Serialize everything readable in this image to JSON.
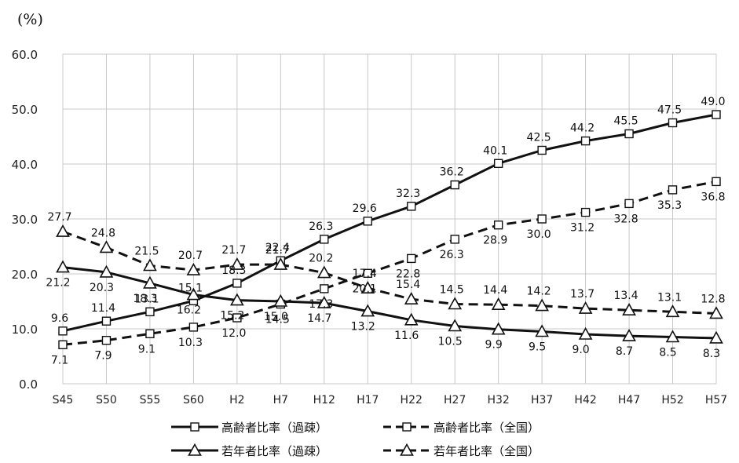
{
  "chart_data": {
    "type": "line",
    "unit_label": "(%)",
    "categories": [
      "S45",
      "S50",
      "S55",
      "S60",
      "H2",
      "H7",
      "H12",
      "H17",
      "H22",
      "H27",
      "H32",
      "H37",
      "H42",
      "H47",
      "H52",
      "H57"
    ],
    "ylim": [
      0,
      60
    ],
    "yticks": [
      "0.0",
      "10.0",
      "20.0",
      "30.0",
      "40.0",
      "50.0",
      "60.0"
    ],
    "grid": true,
    "legend_position": "bottom",
    "series": [
      {
        "name": "高齢者比率（過疎）",
        "values": [
          9.6,
          11.4,
          13.1,
          15.1,
          18.3,
          22.4,
          26.3,
          29.6,
          32.3,
          36.2,
          40.1,
          42.5,
          44.2,
          45.5,
          47.5,
          49.0
        ]
      },
      {
        "name": "高齢者比率（全国）",
        "values": [
          7.1,
          7.9,
          9.1,
          10.3,
          12.0,
          14.5,
          17.3,
          20.1,
          22.8,
          26.3,
          28.9,
          30.0,
          31.2,
          32.8,
          35.3,
          36.8
        ]
      },
      {
        "name": "若年者比率（過疎）",
        "values": [
          21.2,
          20.3,
          18.3,
          16.2,
          15.2,
          15.0,
          14.7,
          13.2,
          11.6,
          10.5,
          9.9,
          9.5,
          9.0,
          8.7,
          8.5,
          8.3
        ]
      },
      {
        "name": "若年者比率（全国）",
        "values": [
          27.7,
          24.8,
          21.5,
          20.7,
          21.7,
          21.7,
          20.2,
          17.4,
          15.4,
          14.5,
          14.4,
          14.2,
          13.7,
          13.4,
          13.1,
          12.8
        ]
      }
    ],
    "data_labels": [
      [
        "9.6",
        "11.4",
        "13.1",
        "15.1",
        "18.3",
        "22.4",
        "26.3",
        "29.6",
        "32.3",
        "36.2",
        "40.1",
        "42.5",
        "44.2",
        "45.5",
        "47.5",
        "49.0"
      ],
      [
        "7.1",
        "7.9",
        "9.1",
        "10.3",
        "12.0",
        "14.5",
        "17.3",
        "20.1",
        "22.8",
        "26.3",
        "28.9",
        "30.0",
        "31.2",
        "32.8",
        "35.3",
        "36.8"
      ],
      [
        "21.2",
        "20.3",
        "18.3",
        "16.2",
        "15.2",
        "15.0",
        "14.7",
        "13.2",
        "11.6",
        "10.5",
        "9.9",
        "9.5",
        "9.0",
        "8.7",
        "8.5",
        "8.3"
      ],
      [
        "27.7",
        "24.8",
        "21.5",
        "20.7",
        "21.7",
        "21.7",
        "20.2",
        "17.4",
        "15.4",
        "14.5",
        "14.4",
        "14.2",
        "13.7",
        "13.4",
        "13.1",
        "12.8"
      ]
    ]
  }
}
